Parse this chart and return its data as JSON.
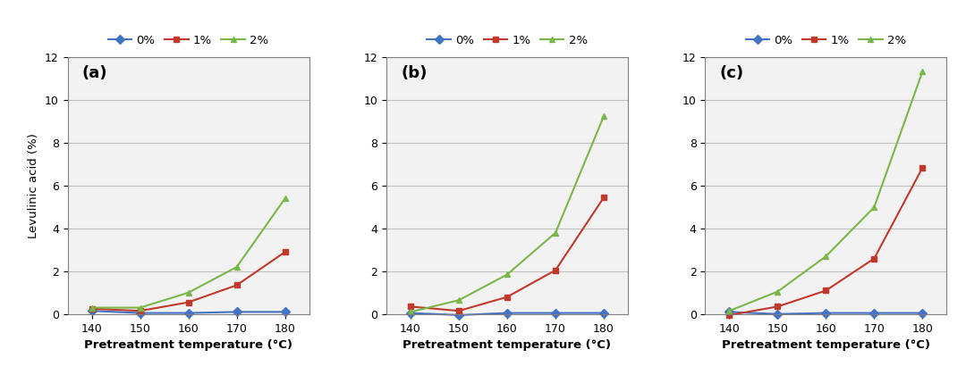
{
  "x": [
    140,
    150,
    160,
    170,
    180
  ],
  "panels": [
    {
      "label": "(a)",
      "series": {
        "0%": [
          0.15,
          0.05,
          0.05,
          0.1,
          0.1
        ],
        "1%": [
          0.25,
          0.15,
          0.55,
          1.35,
          2.9
        ],
        "2%": [
          0.3,
          0.3,
          1.0,
          2.2,
          5.4
        ]
      }
    },
    {
      "label": "(b)",
      "series": {
        "0%": [
          0.05,
          -0.05,
          0.05,
          0.05,
          0.05
        ],
        "1%": [
          0.35,
          0.15,
          0.8,
          2.05,
          5.45
        ],
        "2%": [
          0.1,
          0.65,
          1.85,
          3.8,
          9.25
        ]
      }
    },
    {
      "label": "(c)",
      "series": {
        "0%": [
          0.1,
          0.0,
          0.05,
          0.05,
          0.05
        ],
        "1%": [
          -0.05,
          0.35,
          1.1,
          2.6,
          6.85
        ],
        "2%": [
          0.15,
          1.05,
          2.7,
          5.0,
          11.35
        ]
      }
    }
  ],
  "colors": {
    "0%": "#4472c4",
    "1%": "#c0392b",
    "2%": "#7ab648"
  },
  "markers": {
    "0%": "D",
    "1%": "s",
    "2%": "^"
  },
  "ylabel": "Levulinic acid (%)",
  "xlabel": "Pretreatment temperature (°C)",
  "ylim": [
    0,
    12
  ],
  "yticks": [
    0,
    2,
    4,
    6,
    8,
    10,
    12
  ],
  "legend_labels": [
    "0%",
    "1%",
    "2%"
  ],
  "figsize": [
    10.8,
    4.29
  ],
  "dpi": 100,
  "plot_bg_color": "#f2f2f2",
  "grid_color": "#c0c0c0"
}
